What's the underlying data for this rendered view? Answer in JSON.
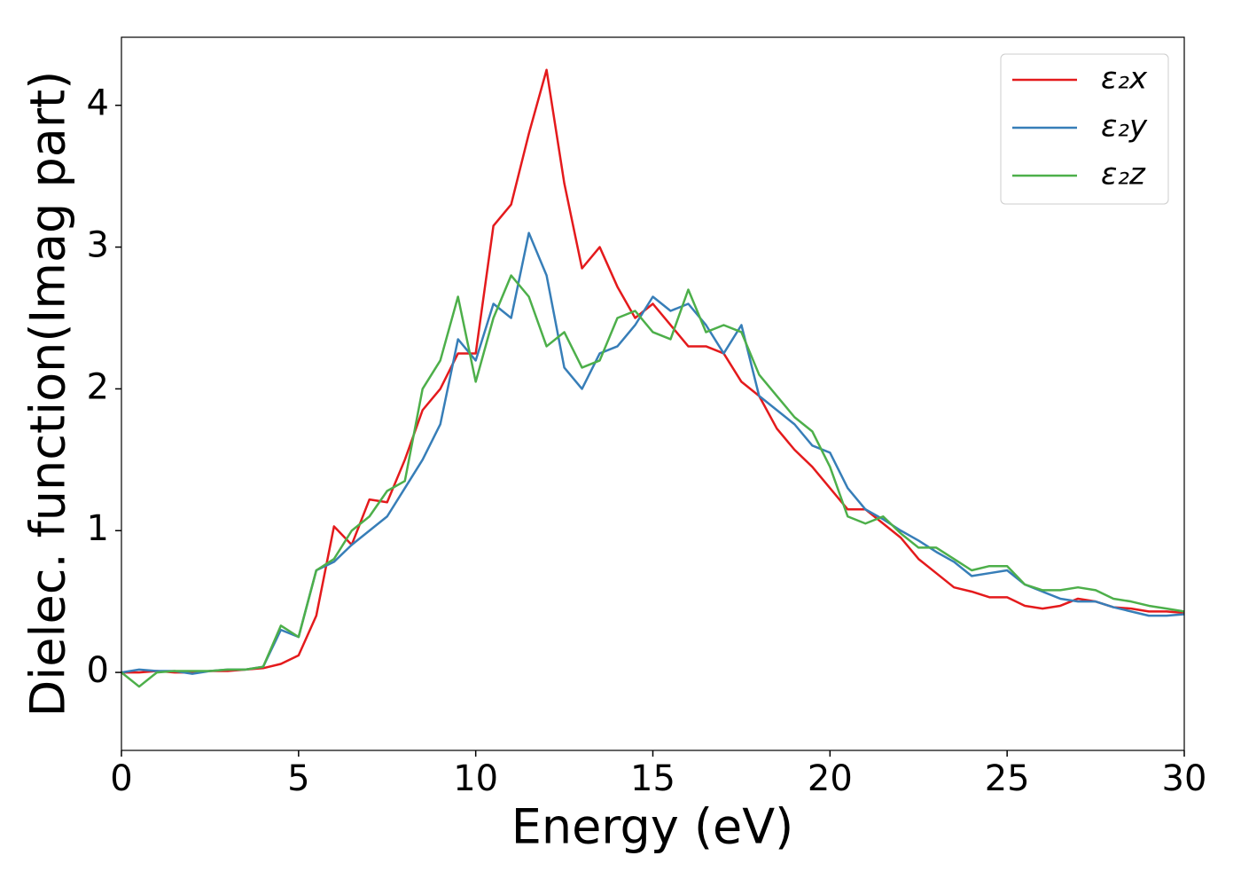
{
  "chart_data": {
    "type": "line",
    "xlabel": "Energy (eV)",
    "ylabel": "Dielec. function(Imag part)",
    "x": [
      0,
      0.5,
      1,
      1.5,
      2,
      2.5,
      3,
      3.5,
      4,
      4.5,
      5,
      5.5,
      6,
      6.5,
      7,
      7.5,
      8,
      8.5,
      9,
      9.5,
      10,
      10.5,
      11,
      11.5,
      12,
      12.5,
      13,
      13.5,
      14,
      14.5,
      15,
      15.5,
      16,
      16.5,
      17,
      17.5,
      18,
      18.5,
      19,
      19.5,
      20,
      20.5,
      21,
      21.5,
      22,
      22.5,
      23,
      23.5,
      24,
      24.5,
      25,
      25.5,
      26,
      26.5,
      27,
      27.5,
      28,
      28.5,
      29,
      29.5,
      30
    ],
    "series": [
      {
        "name": "ε₂x",
        "color": "#e41a1c",
        "values": [
          0,
          0,
          0.01,
          0,
          0,
          0.01,
          0.01,
          0.02,
          0.03,
          0.06,
          0.12,
          0.4,
          1.03,
          0.9,
          1.22,
          1.2,
          1.5,
          1.85,
          2.0,
          2.25,
          2.25,
          3.15,
          3.3,
          3.8,
          4.25,
          3.45,
          2.85,
          3.0,
          2.72,
          2.5,
          2.6,
          2.45,
          2.3,
          2.3,
          2.25,
          2.05,
          1.95,
          1.72,
          1.57,
          1.45,
          1.3,
          1.15,
          1.15,
          1.05,
          0.95,
          0.8,
          0.7,
          0.6,
          0.57,
          0.53,
          0.53,
          0.47,
          0.45,
          0.47,
          0.52,
          0.5,
          0.46,
          0.45,
          0.43,
          0.43,
          0.42
        ]
      },
      {
        "name": "ε₂y",
        "color": "#377eb8",
        "values": [
          0,
          0.02,
          0.01,
          0.01,
          -0.01,
          0.01,
          0.02,
          0.02,
          0.04,
          0.3,
          0.25,
          0.72,
          0.78,
          0.9,
          1.0,
          1.1,
          1.3,
          1.5,
          1.75,
          2.35,
          2.2,
          2.6,
          2.5,
          3.1,
          2.8,
          2.15,
          2.0,
          2.25,
          2.3,
          2.45,
          2.65,
          2.55,
          2.6,
          2.45,
          2.25,
          2.45,
          1.95,
          1.85,
          1.75,
          1.6,
          1.55,
          1.3,
          1.15,
          1.08,
          1.0,
          0.93,
          0.85,
          0.78,
          0.68,
          0.7,
          0.72,
          0.62,
          0.57,
          0.52,
          0.5,
          0.5,
          0.46,
          0.43,
          0.4,
          0.4,
          0.41
        ]
      },
      {
        "name": "ε₂z",
        "color": "#4daf4a",
        "values": [
          0,
          -0.1,
          0,
          0.01,
          0.01,
          0.01,
          0.02,
          0.02,
          0.04,
          0.33,
          0.25,
          0.72,
          0.8,
          1.0,
          1.1,
          1.28,
          1.35,
          2.0,
          2.2,
          2.65,
          2.05,
          2.5,
          2.8,
          2.65,
          2.3,
          2.4,
          2.15,
          2.2,
          2.5,
          2.55,
          2.4,
          2.35,
          2.7,
          2.4,
          2.45,
          2.4,
          2.1,
          1.95,
          1.8,
          1.7,
          1.45,
          1.1,
          1.05,
          1.1,
          0.98,
          0.88,
          0.88,
          0.8,
          0.72,
          0.75,
          0.75,
          0.62,
          0.58,
          0.58,
          0.6,
          0.58,
          0.52,
          0.5,
          0.47,
          0.45,
          0.43
        ]
      }
    ],
    "xlim": [
      0,
      30
    ],
    "xticks": [
      0,
      5,
      10,
      15,
      20,
      25,
      30
    ],
    "ylim": [
      -0.55,
      4.48
    ],
    "yticks": [
      0,
      1,
      2,
      3,
      4
    ],
    "legend": "upper right"
  }
}
